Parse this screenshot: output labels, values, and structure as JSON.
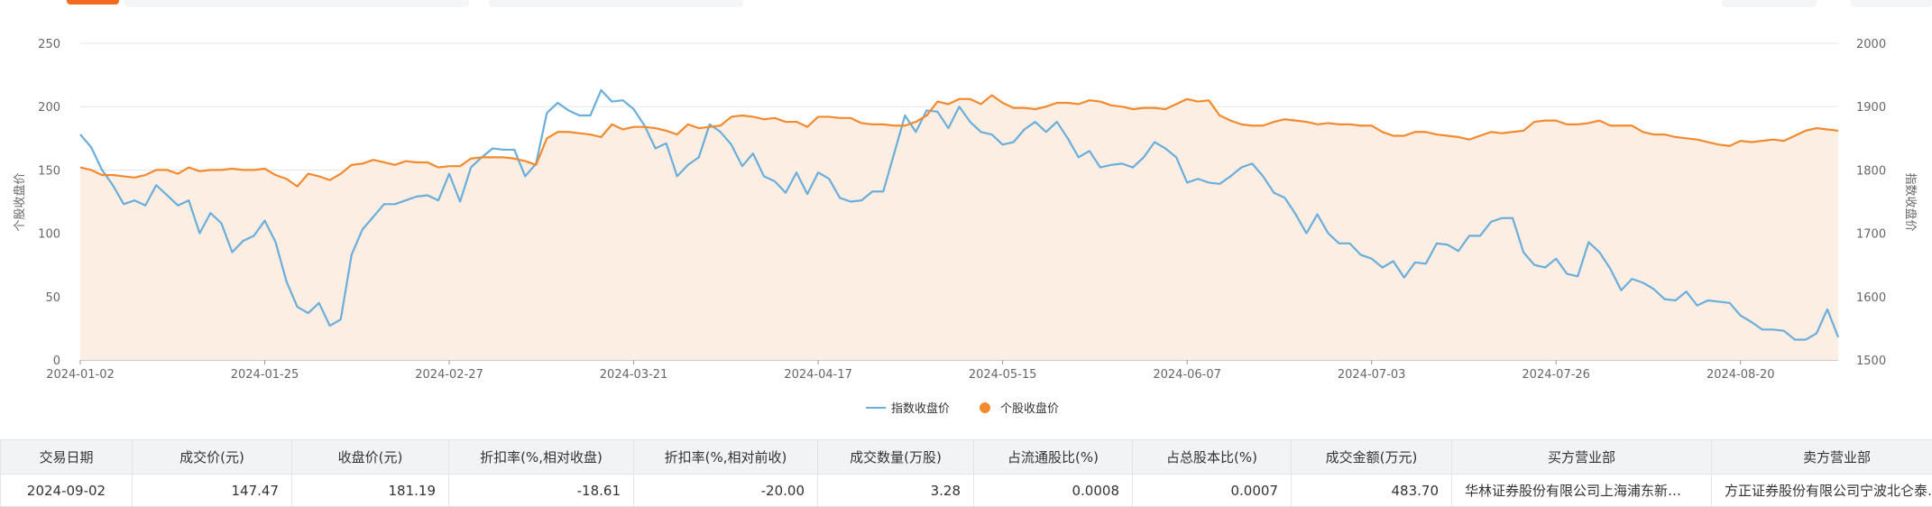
{
  "chart_data": {
    "type": "line",
    "ylabel": "个股收盘价",
    "y2label": "指数收盘价",
    "ylim": [
      0,
      250
    ],
    "yticks": [
      0,
      50,
      100,
      150,
      200,
      250
    ],
    "y2lim": [
      1500,
      2000
    ],
    "y2ticks": [
      1500,
      1600,
      1700,
      1800,
      1900,
      2000
    ],
    "grid": true,
    "legend": "bottom",
    "area_series": 1,
    "area_color": "#fdeee3",
    "categories": [
      "2024-01-02",
      null,
      null,
      null,
      null,
      null,
      null,
      null,
      null,
      null,
      null,
      null,
      null,
      null,
      null,
      null,
      null,
      "2024-01-25",
      null,
      null,
      null,
      null,
      null,
      null,
      null,
      null,
      null,
      null,
      null,
      null,
      null,
      null,
      null,
      null,
      "2024-02-27",
      null,
      null,
      null,
      null,
      null,
      null,
      null,
      null,
      null,
      null,
      null,
      null,
      null,
      null,
      null,
      null,
      "2024-03-21",
      null,
      null,
      null,
      null,
      null,
      null,
      null,
      null,
      null,
      null,
      null,
      null,
      null,
      null,
      null,
      null,
      "2024-04-17",
      null,
      null,
      null,
      null,
      null,
      null,
      null,
      null,
      null,
      null,
      null,
      null,
      null,
      null,
      null,
      null,
      "2024-05-15",
      null,
      null,
      null,
      null,
      null,
      null,
      null,
      null,
      null,
      null,
      null,
      null,
      null,
      null,
      null,
      null,
      "2024-06-07",
      null,
      null,
      null,
      null,
      null,
      null,
      null,
      null,
      null,
      null,
      null,
      null,
      null,
      null,
      null,
      null,
      "2024-07-03",
      null,
      null,
      null,
      null,
      null,
      null,
      null,
      null,
      null,
      null,
      null,
      null,
      null,
      null,
      null,
      null,
      "2024-07-26",
      null,
      null,
      null,
      null,
      null,
      null,
      null,
      null,
      null,
      null,
      null,
      null,
      null,
      null,
      null,
      null,
      "2024-08-20",
      null,
      null,
      null,
      null,
      null,
      null,
      null,
      null,
      null
    ],
    "series": [
      {
        "name": "指数收盘价",
        "color": "#6aaedb",
        "axis": "y2",
        "values": [
          1856,
          1836,
          1800,
          1776,
          1746,
          1752,
          1744,
          1776,
          1760,
          1744,
          1752,
          1700,
          1732,
          1716,
          1670,
          1688,
          1696,
          1720,
          1686,
          1624,
          1584,
          1574,
          1590,
          1554,
          1564,
          1666,
          1706,
          1726,
          1746,
          1746,
          1752,
          1758,
          1760,
          1752,
          1794,
          1750,
          1804,
          1820,
          1834,
          1832,
          1832,
          1790,
          1810,
          1890,
          1906,
          1894,
          1886,
          1886,
          1926,
          1908,
          1910,
          1896,
          1870,
          1834,
          1842,
          1790,
          1808,
          1820,
          1872,
          1860,
          1840,
          1806,
          1826,
          1790,
          1782,
          1764,
          1796,
          1762,
          1796,
          1786,
          1756,
          1750,
          1752,
          1766,
          1766,
          1826,
          1886,
          1860,
          1894,
          1892,
          1866,
          1900,
          1876,
          1860,
          1856,
          1840,
          1844,
          1864,
          1876,
          1860,
          1876,
          1850,
          1820,
          1830,
          1804,
          1808,
          1810,
          1804,
          1820,
          1844,
          1834,
          1820,
          1780,
          1786,
          1780,
          1778,
          1790,
          1804,
          1810,
          1790,
          1764,
          1756,
          1730,
          1700,
          1730,
          1700,
          1684,
          1684,
          1666,
          1660,
          1646,
          1656,
          1630,
          1654,
          1652,
          1684,
          1682,
          1672,
          1696,
          1696,
          1718,
          1724,
          1724,
          1670,
          1650,
          1646,
          1660,
          1636,
          1632,
          1686,
          1670,
          1644,
          1610,
          1628,
          1622,
          1612,
          1596,
          1594,
          1608,
          1586,
          1594,
          1592,
          1590,
          1570,
          1560,
          1548,
          1548,
          1546,
          1532,
          1532,
          1542,
          1580,
          1536
        ]
      },
      {
        "name": "个股收盘价",
        "color": "#f28a2e",
        "axis": "y",
        "values": [
          152,
          150,
          146,
          146,
          145,
          144,
          146,
          150,
          150,
          147,
          152,
          149,
          150,
          150,
          151,
          150,
          150,
          151,
          146,
          143,
          137,
          147,
          145,
          142,
          147,
          154,
          155,
          158,
          156,
          154,
          157,
          156,
          156,
          152,
          153,
          153,
          159,
          160,
          160,
          160,
          159,
          157,
          154,
          175,
          180,
          180,
          179,
          178,
          176,
          186,
          182,
          184,
          184,
          183,
          181,
          178,
          186,
          183,
          184,
          185,
          192,
          193,
          192,
          190,
          191,
          188,
          188,
          184,
          192,
          192,
          191,
          191,
          187,
          186,
          186,
          185,
          185,
          188,
          193,
          204,
          202,
          206,
          206,
          202,
          209,
          203,
          199,
          199,
          198,
          200,
          203,
          203,
          202,
          205,
          204,
          201,
          200,
          198,
          199,
          199,
          198,
          202,
          206,
          204,
          205,
          193,
          189,
          186,
          185,
          185,
          188,
          190,
          189,
          188,
          186,
          187,
          186,
          186,
          185,
          185,
          180,
          177,
          177,
          180,
          180,
          178,
          177,
          176,
          174,
          177,
          180,
          179,
          180,
          181,
          188,
          189,
          189,
          186,
          186,
          187,
          189,
          185,
          185,
          185,
          180,
          178,
          178,
          176,
          175,
          174,
          172,
          170,
          169,
          173,
          172,
          173,
          174,
          173,
          177,
          181,
          183,
          182,
          181
        ]
      }
    ]
  },
  "table": {
    "headers": [
      "交易日期",
      "成交价(元)",
      "收盘价(元)",
      "折扣率(%,相对收盘)",
      "折扣率(%,相对前收)",
      "成交数量(万股)",
      "占流通股比(%)",
      "占总股本比(%)",
      "成交金额(万元)",
      "买方营业部",
      "卖方营业部"
    ],
    "rows": [
      [
        "2024-09-02",
        "147.47",
        "181.19",
        "-18.61",
        "-20.00",
        "3.28",
        "0.0008",
        "0.0007",
        "483.70",
        "华林证券股份有限公司上海浦东新…",
        "方正证券股份有限公司宁波北仑泰…"
      ]
    ]
  }
}
